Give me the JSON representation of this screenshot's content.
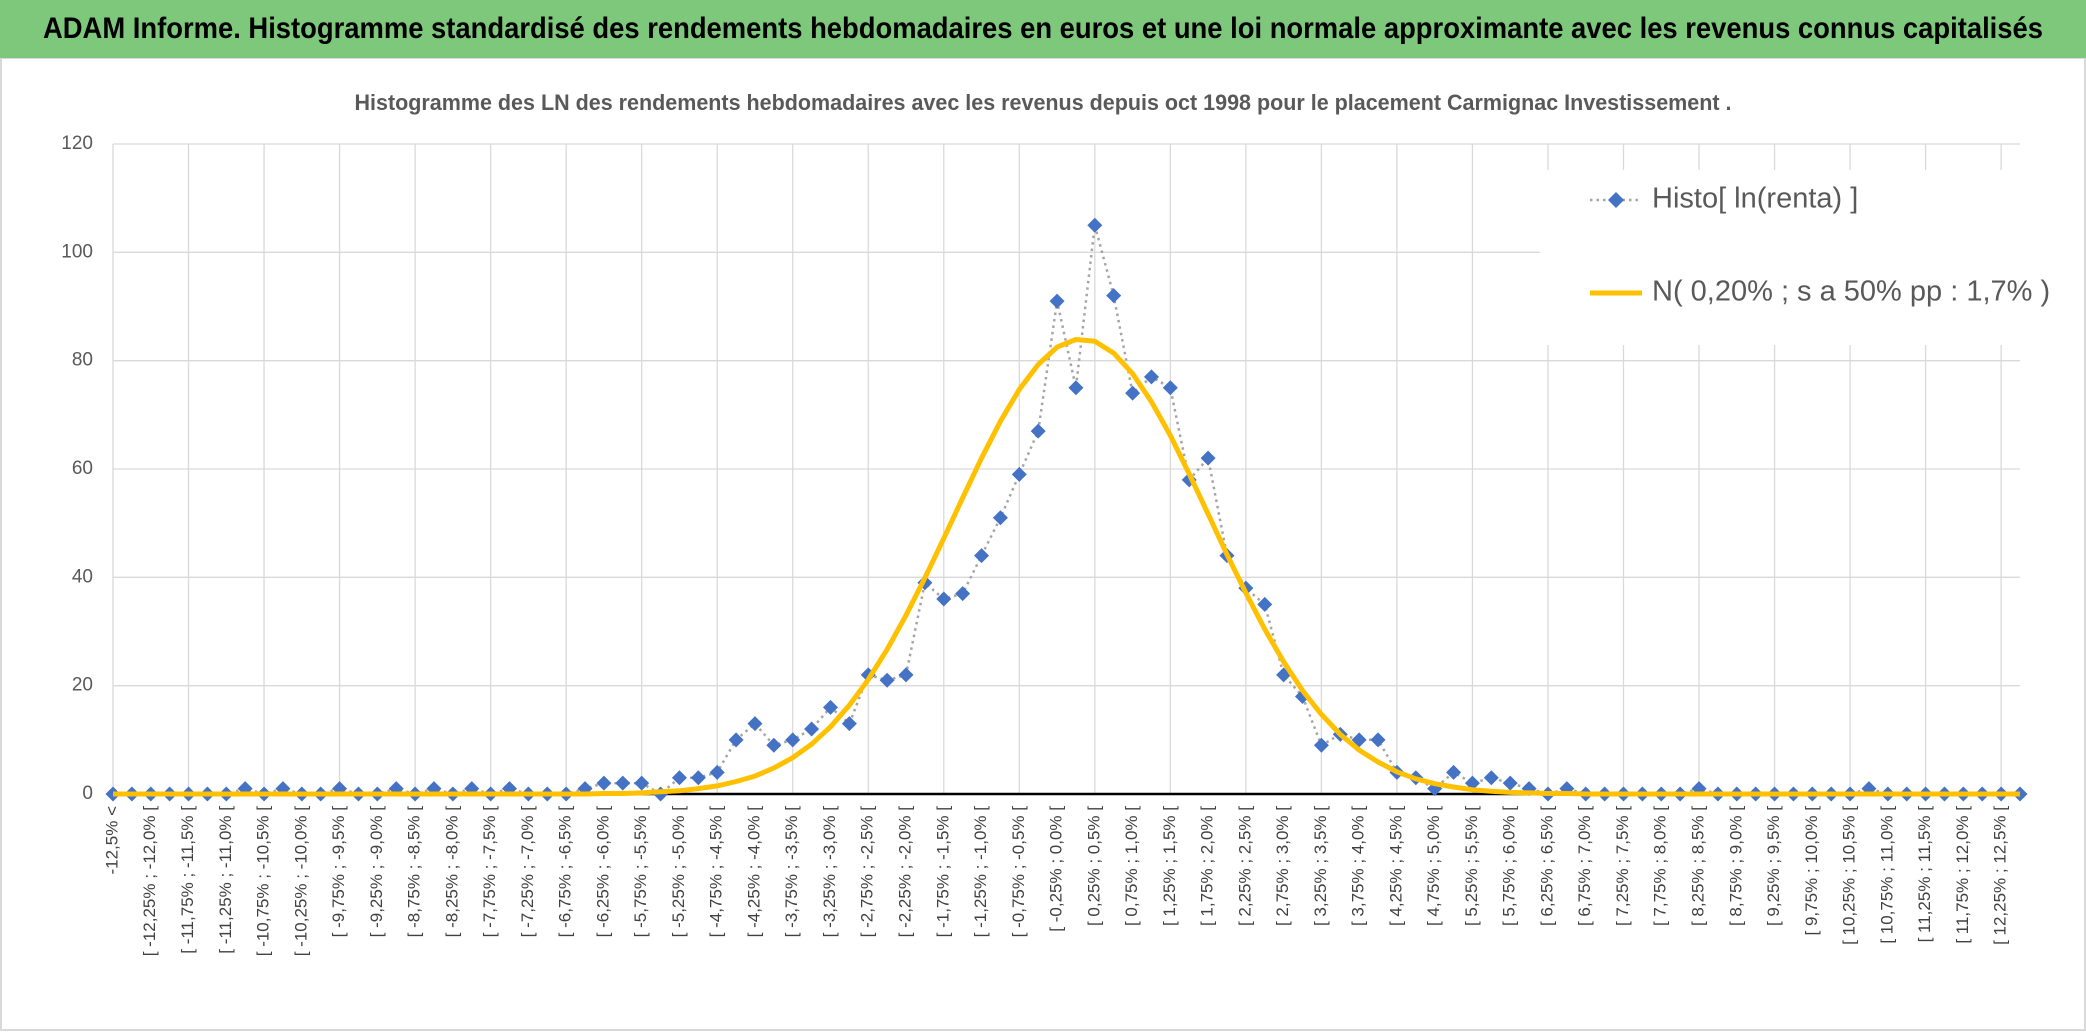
{
  "header": {
    "title": "ADAM Informe. Histogramme standardisé des rendements hebdomadaires en euros et une loi normale approximante avec les revenus connus capitalisés"
  },
  "chart_data": {
    "type": "line",
    "title": "Histogramme des LN des rendements hebdomadaires avec les revenus depuis oct 1998 pour le placement Carmignac Investissement .",
    "categories": [
      "-12,5% <",
      null,
      "[ -12,25% ; -12,0% [",
      null,
      "[ -11,75% ; -11,5% [",
      null,
      "[ -11,25% ; -11,0% [",
      null,
      "[ -10,75% ; -10,5% [",
      null,
      "[ -10,25% ; -10,0% [",
      null,
      "[ -9,75% ; -9,5% [",
      null,
      "[ -9,25% ; -9,0% [",
      null,
      "[ -8,75% ; -8,5% [",
      null,
      "[ -8,25% ; -8,0% [",
      null,
      "[ -7,75% ; -7,5% [",
      null,
      "[ -7,25% ; -7,0% [",
      null,
      "[ -6,75% ; -6,5% [",
      null,
      "[ -6,25% ; -6,0% [",
      null,
      "[ -5,75% ; -5,5% [",
      null,
      "[ -5,25% ; -5,0% [",
      null,
      "[ -4,75% ; -4,5% [",
      null,
      "[ -4,25% ; -4,0% [",
      null,
      "[ -3,75% ; -3,5% [",
      null,
      "[ -3,25% ; -3,0% [",
      null,
      "[ -2,75% ; -2,5% [",
      null,
      "[ -2,25% ; -2,0% [",
      null,
      "[ -1,75% ; -1,5% [",
      null,
      "[ -1,25% ; -1,0% [",
      null,
      "[ -0,75% ; -0,5% [",
      null,
      "[ -0,25% ; 0,0% [",
      null,
      "[ 0,25% ; 0,5% [",
      null,
      "[ 0,75% ; 1,0% [",
      null,
      "[ 1,25% ; 1,5% [",
      null,
      "[ 1,75% ; 2,0% [",
      null,
      "[ 2,25% ; 2,5% [",
      null,
      "[ 2,75% ; 3,0% [",
      null,
      "[ 3,25% ; 3,5% [",
      null,
      "[ 3,75% ; 4,0% [",
      null,
      "[ 4,25% ; 4,5% [",
      null,
      "[ 4,75% ; 5,0% [",
      null,
      "[ 5,25% ; 5,5% [",
      null,
      "[ 5,75% ; 6,0% [",
      null,
      "[ 6,25% ; 6,5% [",
      null,
      "[ 6,75% ; 7,0% [",
      null,
      "[ 7,25% ; 7,5% [",
      null,
      "[ 7,75% ; 8,0% [",
      null,
      "[ 8,25% ; 8,5% [",
      null,
      "[ 8,75% ; 9,0% [",
      null,
      "[ 9,25% ; 9,5% [",
      null,
      "[ 9,75% ; 10,0% [",
      null,
      "[ 10,25% ; 10,5% [",
      null,
      "[ 10,75% ; 11,0% [",
      null,
      "[ 11,25% ; 11,5% [",
      null,
      "[ 11,75% ; 12,0% [",
      null,
      "[ 12,25% ; 12,5% [",
      null
    ],
    "series": [
      {
        "name": "Histo[ ln(renta) ]",
        "color": "#4472c4",
        "line_color": "#a5a5a5",
        "marker": "diamond",
        "values": [
          0,
          0,
          0,
          0,
          0,
          0,
          0,
          1,
          0,
          1,
          0,
          0,
          1,
          0,
          0,
          1,
          0,
          1,
          0,
          1,
          0,
          1,
          0,
          0,
          0,
          1,
          2,
          2,
          2,
          0,
          3,
          3,
          4,
          10,
          13,
          9,
          10,
          12,
          16,
          13,
          22,
          21,
          22,
          39,
          36,
          37,
          44,
          51,
          59,
          67,
          91,
          75,
          105,
          92,
          74,
          77,
          75,
          58,
          62,
          44,
          38,
          35,
          22,
          18,
          9,
          11,
          10,
          10,
          4,
          3,
          1,
          4,
          2,
          3,
          2,
          1,
          0,
          1,
          0,
          0,
          0,
          0,
          0,
          0,
          1,
          0,
          0,
          0,
          0,
          0,
          0,
          0,
          0,
          1,
          0,
          0,
          0,
          0,
          0,
          0,
          0,
          0
        ]
      },
      {
        "name": "N( 0,20% ; s a 50% pp : 1,7% )",
        "color": "#ffc000",
        "values": [
          0,
          0,
          0,
          0,
          0,
          0,
          0,
          0,
          0,
          0,
          0,
          0,
          0,
          0,
          0,
          0,
          0,
          0,
          0,
          0,
          0,
          0,
          0,
          0,
          0,
          0,
          0.1,
          0.1,
          0.2,
          0.4,
          0.6,
          1.0,
          1.5,
          2.3,
          3.3,
          4.8,
          6.7,
          9.2,
          12.4,
          16.4,
          21.1,
          26.7,
          33.0,
          39.9,
          47.2,
          54.7,
          62.0,
          68.8,
          74.7,
          79.3,
          82.5,
          83.9,
          83.6,
          81.4,
          77.6,
          72.4,
          66.2,
          59.1,
          51.7,
          44.2,
          37.1,
          30.4,
          24.4,
          19.1,
          14.7,
          11.0,
          8.1,
          5.9,
          4.1,
          2.8,
          1.9,
          1.3,
          0.8,
          0.5,
          0.3,
          0.2,
          0.1,
          0.1,
          0,
          0,
          0,
          0,
          0,
          0,
          0,
          0,
          0,
          0,
          0,
          0,
          0,
          0,
          0,
          0,
          0,
          0,
          0,
          0,
          0,
          0,
          0,
          0
        ]
      }
    ],
    "ylim": [
      0,
      120
    ],
    "yticks": [
      0,
      20,
      40,
      60,
      80,
      100,
      120
    ],
    "grid": true,
    "legend": "top-right"
  }
}
